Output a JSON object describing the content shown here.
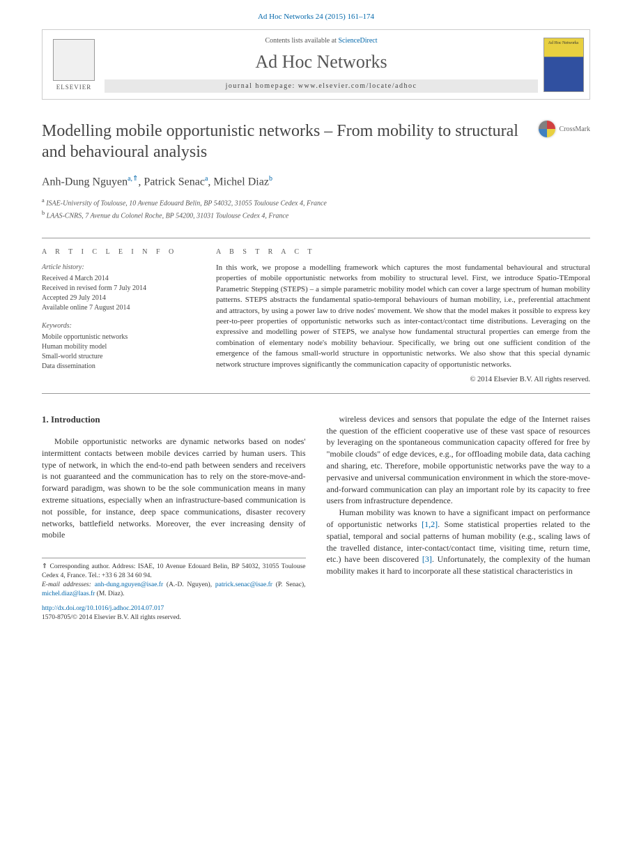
{
  "header": {
    "topLink": "Ad Hoc Networks 24 (2015) 161–174",
    "contentsLine": "Contents lists available at ",
    "contentsLink": "ScienceDirect",
    "journalTitle": "Ad Hoc Networks",
    "homepage": "journal homepage: www.elsevier.com/locate/adhoc",
    "elsevierLabel": "ELSEVIER",
    "coverLabel": "Ad Hoc Networks"
  },
  "title": "Modelling mobile opportunistic networks – From mobility to structural and behavioural analysis",
  "crossmark": "CrossMark",
  "authors": {
    "a1": "Anh-Dung Nguyen",
    "a1sup": "a,⇑",
    "a2": "Patrick Senac",
    "a2sup": "a",
    "a3": "Michel Diaz",
    "a3sup": "b"
  },
  "affiliations": {
    "a": "ISAE-University of Toulouse, 10 Avenue Edouard Belin, BP 54032, 31055 Toulouse Cedex 4, France",
    "b": "LAAS-CNRS, 7 Avenue du Colonel Roche, BP 54200, 31031 Toulouse Cedex 4, France"
  },
  "articleInfo": {
    "heading": "A R T I C L E   I N F O",
    "historyLabel": "Article history:",
    "history": {
      "received": "Received 4 March 2014",
      "revised": "Received in revised form 7 July 2014",
      "accepted": "Accepted 29 July 2014",
      "online": "Available online 7 August 2014"
    },
    "keywordsLabel": "Keywords:",
    "keywords": {
      "k1": "Mobile opportunistic networks",
      "k2": "Human mobility model",
      "k3": "Small-world structure",
      "k4": "Data dissemination"
    }
  },
  "abstract": {
    "heading": "A B S T R A C T",
    "text": "In this work, we propose a modelling framework which captures the most fundamental behavioural and structural properties of mobile opportunistic networks from mobility to structural level. First, we introduce Spatio-TEmporal Parametric Stepping (STEPS) – a simple parametric mobility model which can cover a large spectrum of human mobility patterns. STEPS abstracts the fundamental spatio-temporal behaviours of human mobility, i.e., preferential attachment and attractors, by using a power law to drive nodes' movement. We show that the model makes it possible to express key peer-to-peer properties of opportunistic networks such as inter-contact/contact time distributions. Leveraging on the expressive and modelling power of STEPS, we analyse how fundamental structural properties can emerge from the combination of elementary node's mobility behaviour. Specifically, we bring out one sufficient condition of the emergence of the famous small-world structure in opportunistic networks. We also show that this special dynamic network structure improves significantly the communication capacity of opportunistic networks.",
    "copyright": "© 2014 Elsevier B.V. All rights reserved."
  },
  "body": {
    "section1": "1. Introduction",
    "col1p1": "Mobile opportunistic networks are dynamic networks based on nodes' intermittent contacts between mobile devices carried by human users. This type of network, in which the end-to-end path between senders and receivers is not guaranteed and the communication has to rely on the store-move-and-forward paradigm, was shown to be the sole communication means in many extreme situations, especially when an infrastructure-based communication is not possible, for instance, deep space communications, disaster recovery networks, battlefield networks. Moreover, the ever increasing density of mobile",
    "col2p1": "wireless devices and sensors that populate the edge of the Internet raises the question of the efficient cooperative use of these vast space of resources by leveraging on the spontaneous communication capacity offered for free by \"mobile clouds\" of edge devices, e.g., for offloading mobile data, data caching and sharing, etc. Therefore, mobile opportunistic networks pave the way to a pervasive and universal communication environment in which the store-move-and-forward communication can play an important role by its capacity to free users from infrastructure dependence.",
    "col2p2a": "Human mobility was known to have a significant impact on performance of opportunistic networks ",
    "col2ref1": "[1,2]",
    "col2p2b": ". Some statistical properties related to the spatial, temporal and social patterns of human mobility (e.g., scaling laws of the travelled distance, inter-contact/contact time, visiting time, return time, etc.) have been discovered ",
    "col2ref2": "[3]",
    "col2p2c": ". Unfortunately, the complexity of the human mobility makes it hard to incorporate all these statistical characteristics in"
  },
  "footnotes": {
    "corrLabel": "⇑ Corresponding author. Address: ISAE, 10 Avenue Edouard Belin, BP 54032, 31055 Toulouse Cedex 4, France. Tel.: +33 6 28 34 60 94.",
    "emailLabel": "E-mail addresses: ",
    "email1": "anh-dung.nguyen@isae.fr",
    "email1n": " (A.-D. Nguyen), ",
    "email2": "patrick.senac@isae.fr",
    "email2n": " (P. Senac), ",
    "email3": "michel.diaz@laas.fr",
    "email3n": " (M. Diaz)."
  },
  "footer": {
    "doi": "http://dx.doi.org/10.1016/j.adhoc.2014.07.017",
    "issn": "1570-8705/© 2014 Elsevier B.V. All rights reserved."
  },
  "colors": {
    "link": "#0066aa",
    "text": "#333333",
    "heading": "#444444"
  }
}
